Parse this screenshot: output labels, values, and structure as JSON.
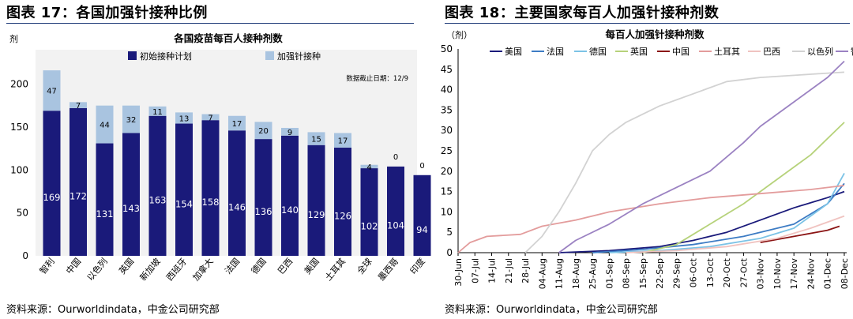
{
  "left": {
    "fig_title": "图表 17：各国加强针接种比例",
    "source": "资料来源：Ourworldindata，中金公司研究部"
  },
  "right": {
    "fig_title": "图表 18：主要国家每百人加强针接种剂数",
    "source": "资料来源：Ourworldindata，中金公司研究部"
  },
  "colors": {
    "initial": "#1a1a7a",
    "booster": "#a9c4e0",
    "美国": "#1a1a7a",
    "法国": "#3d7cc4",
    "德国": "#7cc3e6",
    "英国": "#b6d27a",
    "中国": "#8b1414",
    "土耳其": "#e39c9c",
    "巴西": "#f0c3c0",
    "以色列": "#d2d2d2",
    "智利": "#9b82c2"
  },
  "chart_data": [
    {
      "type": "bar",
      "stacked": true,
      "title": "各国疫苗每百人接种剂数",
      "ylabel": "剂",
      "ylim": [
        0,
        240
      ],
      "yticks": [
        0,
        50,
        100,
        150,
        200
      ],
      "annotation": "数据截止日期：12/9",
      "legend_position": "top",
      "categories": [
        "智利",
        "中国",
        "以色列",
        "英国",
        "新加坡",
        "西班牙",
        "加拿大",
        "法国",
        "德国",
        "巴西",
        "美国",
        "土耳其",
        "全球",
        "墨西哥",
        "印度"
      ],
      "series": [
        {
          "name": "初始接种计划",
          "values": [
            169,
            172,
            131,
            143,
            163,
            154,
            158,
            146,
            136,
            140,
            129,
            126,
            102,
            104,
            94
          ]
        },
        {
          "name": "加强针接种",
          "values": [
            47,
            7,
            44,
            32,
            11,
            13,
            7,
            17,
            20,
            9,
            15,
            17,
            4,
            0,
            0
          ]
        }
      ]
    },
    {
      "type": "line",
      "title": "每百人加强针接种剂数",
      "ylabel": "（剂）",
      "ylim": [
        0,
        50
      ],
      "yticks": [
        0,
        5,
        10,
        15,
        20,
        25,
        30,
        35,
        40,
        45,
        50
      ],
      "x_range": [
        "2021-06-30",
        "2021-12-09"
      ],
      "x_tick_labels": [
        "30-Jun",
        "07-Jul",
        "14-Jul",
        "21-Jul",
        "28-Jul",
        "04-Aug",
        "11-Aug",
        "18-Aug",
        "25-Aug",
        "01-Sep",
        "08-Sep",
        "15-Sep",
        "22-Sep",
        "29-Sep",
        "06-Oct",
        "13-Oct",
        "20-Oct",
        "27-Oct",
        "03-Nov",
        "10-Nov",
        "17-Nov",
        "24-Nov",
        "01-Dec",
        "08-Dec"
      ],
      "legend_position": "top",
      "series": [
        {
          "name": "美国",
          "points": [
            [
              "2021-08-11",
              0
            ],
            [
              "2021-09-01",
              0.5
            ],
            [
              "2021-09-22",
              1.5
            ],
            [
              "2021-10-06",
              3
            ],
            [
              "2021-10-20",
              5
            ],
            [
              "2021-11-03",
              8
            ],
            [
              "2021-11-17",
              11
            ],
            [
              "2021-12-01",
              13.5
            ],
            [
              "2021-12-08",
              15
            ]
          ]
        },
        {
          "name": "法国",
          "points": [
            [
              "2021-08-25",
              0
            ],
            [
              "2021-09-15",
              0.8
            ],
            [
              "2021-10-06",
              2
            ],
            [
              "2021-10-27",
              4
            ],
            [
              "2021-11-17",
              7
            ],
            [
              "2021-12-01",
              12
            ],
            [
              "2021-12-08",
              17
            ]
          ]
        },
        {
          "name": "德国",
          "points": [
            [
              "2021-09-01",
              0
            ],
            [
              "2021-09-22",
              0.5
            ],
            [
              "2021-10-13",
              1.5
            ],
            [
              "2021-11-03",
              3.5
            ],
            [
              "2021-11-17",
              6
            ],
            [
              "2021-12-01",
              12
            ],
            [
              "2021-12-08",
              19.5
            ]
          ]
        },
        {
          "name": "英国",
          "points": [
            [
              "2021-09-15",
              0
            ],
            [
              "2021-09-29",
              2
            ],
            [
              "2021-10-13",
              7
            ],
            [
              "2021-10-27",
              12
            ],
            [
              "2021-11-10",
              18
            ],
            [
              "2021-11-24",
              24
            ],
            [
              "2021-12-08",
              32
            ]
          ]
        },
        {
          "name": "中国",
          "points": [
            [
              "2021-11-03",
              2.5
            ],
            [
              "2021-11-17",
              4
            ],
            [
              "2021-12-01",
              5.5
            ],
            [
              "2021-12-06",
              6.5
            ]
          ]
        },
        {
          "name": "土耳其",
          "points": [
            [
              "2021-06-30",
              0
            ],
            [
              "2021-07-05",
              2.5
            ],
            [
              "2021-07-12",
              4
            ],
            [
              "2021-07-26",
              4.5
            ],
            [
              "2021-08-04",
              6.5
            ],
            [
              "2021-08-18",
              8
            ],
            [
              "2021-09-01",
              10
            ],
            [
              "2021-09-22",
              12
            ],
            [
              "2021-10-13",
              13.5
            ],
            [
              "2021-11-03",
              14.5
            ],
            [
              "2021-11-24",
              15.5
            ],
            [
              "2021-12-08",
              16.5
            ]
          ]
        },
        {
          "name": "巴西",
          "points": [
            [
              "2021-09-08",
              0
            ],
            [
              "2021-09-29",
              0.5
            ],
            [
              "2021-10-20",
              1.5
            ],
            [
              "2021-11-10",
              3.5
            ],
            [
              "2021-11-24",
              6
            ],
            [
              "2021-12-08",
              9
            ]
          ]
        },
        {
          "name": "以色列",
          "points": [
            [
              "2021-07-28",
              0
            ],
            [
              "2021-08-04",
              4
            ],
            [
              "2021-08-11",
              10
            ],
            [
              "2021-08-18",
              17
            ],
            [
              "2021-08-25",
              25
            ],
            [
              "2021-09-01",
              29
            ],
            [
              "2021-09-08",
              32
            ],
            [
              "2021-09-22",
              36
            ],
            [
              "2021-10-06",
              39
            ],
            [
              "2021-10-20",
              42
            ],
            [
              "2021-11-03",
              43
            ],
            [
              "2021-11-24",
              43.8
            ],
            [
              "2021-12-08",
              44.3
            ]
          ]
        },
        {
          "name": "智利",
          "points": [
            [
              "2021-08-11",
              0
            ],
            [
              "2021-08-18",
              3
            ],
            [
              "2021-09-01",
              7
            ],
            [
              "2021-09-15",
              12
            ],
            [
              "2021-09-29",
              16
            ],
            [
              "2021-10-13",
              20
            ],
            [
              "2021-10-27",
              27
            ],
            [
              "2021-11-03",
              31
            ],
            [
              "2021-11-17",
              37
            ],
            [
              "2021-12-01",
              43
            ],
            [
              "2021-12-08",
              47
            ]
          ]
        }
      ]
    }
  ]
}
